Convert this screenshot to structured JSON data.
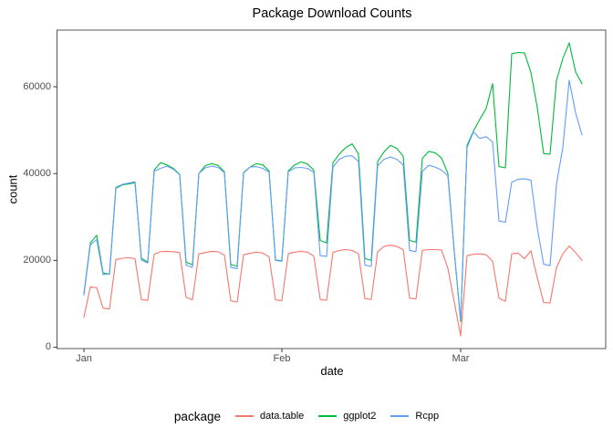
{
  "title": "Package Download Counts",
  "y_axis": {
    "label": "count",
    "tick_labels": [
      "0",
      "20000",
      "40000",
      "60000"
    ]
  },
  "x_axis": {
    "label": "date",
    "tick_labels": [
      "Jan",
      "Feb",
      "Mar"
    ]
  },
  "legend": {
    "title": "package",
    "items": [
      {
        "label": "data.table",
        "color": "#F8766D"
      },
      {
        "label": "ggplot2",
        "color": "#00BA38"
      },
      {
        "label": "Rcpp",
        "color": "#619CFF"
      }
    ]
  },
  "chart_data": {
    "type": "line",
    "title": "Package Download Counts",
    "xlabel": "date",
    "ylabel": "count",
    "ylim": [
      0,
      73000
    ],
    "y_ticks": [
      0,
      20000,
      40000,
      60000
    ],
    "x_tick_day_indices": [
      0,
      31,
      59
    ],
    "x_tick_labels": [
      "Jan",
      "Feb",
      "Mar"
    ],
    "grid": false,
    "legend_position": "bottom",
    "x": [
      "Jan 1",
      "Jan 2",
      "Jan 3",
      "Jan 4",
      "Jan 5",
      "Jan 6",
      "Jan 7",
      "Jan 8",
      "Jan 9",
      "Jan 10",
      "Jan 11",
      "Jan 12",
      "Jan 13",
      "Jan 14",
      "Jan 15",
      "Jan 16",
      "Jan 17",
      "Jan 18",
      "Jan 19",
      "Jan 20",
      "Jan 21",
      "Jan 22",
      "Jan 23",
      "Jan 24",
      "Jan 25",
      "Jan 26",
      "Jan 27",
      "Jan 28",
      "Jan 29",
      "Jan 30",
      "Jan 31",
      "Feb 1",
      "Feb 2",
      "Feb 3",
      "Feb 4",
      "Feb 5",
      "Feb 6",
      "Feb 7",
      "Feb 8",
      "Feb 9",
      "Feb 10",
      "Feb 11",
      "Feb 12",
      "Feb 13",
      "Feb 14",
      "Feb 15",
      "Feb 16",
      "Feb 17",
      "Feb 18",
      "Feb 19",
      "Feb 20",
      "Feb 21",
      "Feb 22",
      "Feb 23",
      "Feb 24",
      "Feb 25",
      "Feb 26",
      "Feb 27",
      "Feb 28",
      "Mar 1",
      "Mar 2",
      "Mar 3",
      "Mar 4",
      "Mar 5",
      "Mar 6",
      "Mar 7",
      "Mar 8",
      "Mar 9",
      "Mar 10",
      "Mar 11",
      "Mar 12",
      "Mar 13",
      "Mar 14",
      "Mar 15",
      "Mar 16",
      "Mar 17",
      "Mar 18",
      "Mar 19",
      "Mar 20"
    ],
    "series": [
      {
        "name": "data.table",
        "color": "#F8766D",
        "values": [
          6900,
          13900,
          13700,
          9000,
          8800,
          20200,
          20500,
          20600,
          20400,
          11000,
          10800,
          21400,
          22000,
          22100,
          22000,
          21800,
          11500,
          10900,
          21500,
          21800,
          22100,
          22000,
          21200,
          10700,
          10400,
          21300,
          21600,
          21900,
          21700,
          20800,
          10900,
          10700,
          21500,
          21900,
          22100,
          21900,
          21000,
          11000,
          10800,
          21800,
          22300,
          22500,
          22300,
          21500,
          11200,
          11000,
          22000,
          23200,
          23500,
          23200,
          22500,
          11300,
          11100,
          22300,
          22500,
          22500,
          22400,
          18200,
          10400,
          2600,
          21100,
          21400,
          21500,
          21300,
          19800,
          11300,
          10600,
          21500,
          21700,
          20400,
          22200,
          16000,
          10300,
          10200,
          18300,
          21500,
          23300,
          21800,
          20000
        ]
      },
      {
        "name": "ggplot2",
        "color": "#00BA38",
        "values": [
          12300,
          24000,
          25800,
          17100,
          16800,
          36600,
          37400,
          37600,
          37900,
          20500,
          19600,
          40800,
          42500,
          42000,
          41200,
          39800,
          19600,
          19000,
          40000,
          41800,
          42300,
          41900,
          40400,
          19000,
          18700,
          40200,
          41500,
          42300,
          42000,
          40600,
          20100,
          19900,
          40600,
          42000,
          42700,
          42200,
          40800,
          24600,
          24000,
          42500,
          44500,
          46000,
          46850,
          44500,
          20400,
          20000,
          42800,
          45000,
          46500,
          45800,
          44000,
          24600,
          24200,
          43500,
          45100,
          44800,
          43600,
          40000,
          22000,
          5900,
          46500,
          49800,
          52500,
          55000,
          60700,
          41600,
          41300,
          67600,
          67900,
          67800,
          63300,
          55200,
          44600,
          44500,
          61400,
          66500,
          70100,
          63400,
          60700
        ]
      },
      {
        "name": "Rcpp",
        "color": "#619CFF",
        "values": [
          12000,
          23600,
          24800,
          16700,
          16900,
          36800,
          37500,
          37800,
          38100,
          20100,
          19400,
          40500,
          41200,
          41700,
          41000,
          39700,
          18900,
          18400,
          40000,
          41300,
          41700,
          41400,
          40200,
          18400,
          18100,
          40100,
          41500,
          41600,
          41200,
          40300,
          20000,
          19800,
          40400,
          41300,
          41400,
          41200,
          40300,
          21100,
          20900,
          41500,
          43300,
          44000,
          44100,
          42800,
          18900,
          18600,
          41800,
          43300,
          43800,
          43300,
          42000,
          22300,
          22000,
          40500,
          41900,
          41500,
          40800,
          39500,
          22000,
          6300,
          46000,
          49600,
          48100,
          48500,
          47300,
          29100,
          28800,
          38000,
          38700,
          38800,
          38500,
          27500,
          19100,
          18800,
          37500,
          46000,
          61500,
          54000,
          48900
        ]
      }
    ]
  }
}
